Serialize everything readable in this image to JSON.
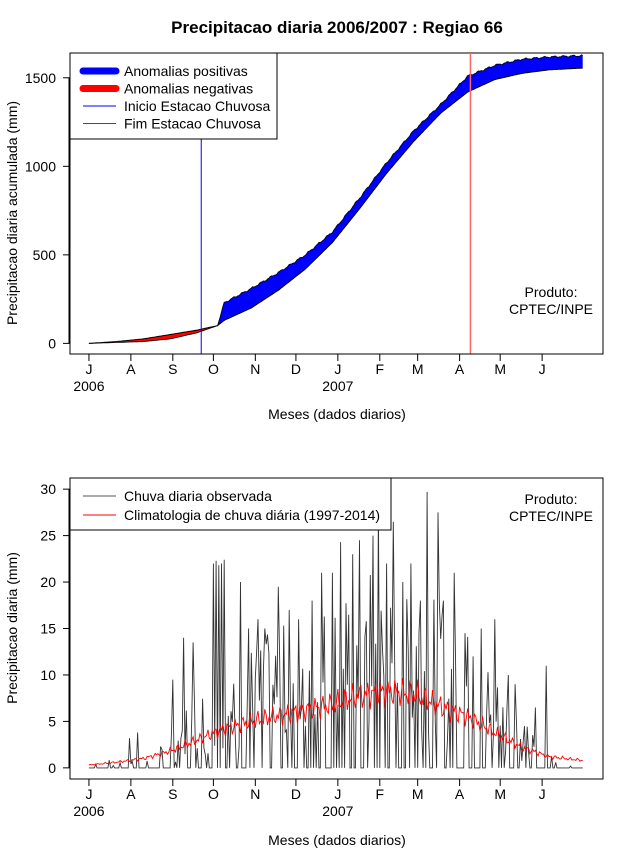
{
  "title": "Precipitacao diaria 2006/2007 : Regiao 66",
  "chart_data": [
    {
      "type": "area",
      "name": "accumulated",
      "ylabel": "Precipitacao diaria acumulada (mm)",
      "xlabel": "Meses (dados diarios)",
      "ylim": [
        -60,
        1640
      ],
      "yticks": [
        0,
        500,
        1000,
        1500
      ],
      "x_unit": "days since 2006-07-01",
      "month_ticks": [
        {
          "label": "J",
          "day": 0
        },
        {
          "label": "A",
          "day": 31
        },
        {
          "label": "S",
          "day": 62
        },
        {
          "label": "O",
          "day": 92
        },
        {
          "label": "N",
          "day": 123
        },
        {
          "label": "D",
          "day": 153
        },
        {
          "label": "J",
          "day": 184
        },
        {
          "label": "F",
          "day": 215
        },
        {
          "label": "M",
          "day": 243
        },
        {
          "label": "A",
          "day": 274
        },
        {
          "label": "M",
          "day": 304
        },
        {
          "label": "J",
          "day": 335
        }
      ],
      "year_labels": [
        {
          "label": "2006",
          "day": 0
        },
        {
          "label": "2007",
          "day": 184
        }
      ],
      "xlim": [
        -14,
        380
      ],
      "observed_accum": {
        "x": [
          0,
          20,
          40,
          60,
          80,
          95,
          100,
          120,
          140,
          160,
          180,
          200,
          220,
          240,
          260,
          280,
          300,
          320,
          340,
          365
        ],
        "y": [
          0,
          5,
          10,
          25,
          60,
          100,
          230,
          310,
          400,
          500,
          630,
          820,
          1020,
          1200,
          1350,
          1510,
          1570,
          1605,
          1618,
          1625
        ]
      },
      "climatology_accum": {
        "x": [
          0,
          20,
          40,
          60,
          80,
          95,
          100,
          120,
          140,
          160,
          180,
          200,
          220,
          240,
          260,
          280,
          300,
          320,
          340,
          365
        ],
        "y": [
          0,
          10,
          25,
          50,
          75,
          100,
          130,
          200,
          300,
          420,
          570,
          760,
          960,
          1140,
          1300,
          1420,
          1490,
          1525,
          1545,
          1555
        ]
      },
      "onset_day": 83,
      "end_day": 282,
      "legend": [
        {
          "label": "Anomalias positivas",
          "color": "#0000ff",
          "kind": "thick"
        },
        {
          "label": "Anomalias negativas",
          "color": "#ff0000",
          "kind": "thick"
        },
        {
          "label": "Inicio Estacao Chuvosa",
          "color": "#0000ff",
          "kind": "thin"
        },
        {
          "label": "Fim Estacao Chuvosa",
          "color": "#ff0000",
          "kind": "thin"
        }
      ],
      "annotation": [
        "Produto:",
        "CPTEC/INPE"
      ]
    },
    {
      "type": "line",
      "name": "daily",
      "ylabel": "Precipitacao diaria (mm)",
      "xlabel": "Meses (dados diarios)",
      "ylim": [
        -1.2,
        31.2
      ],
      "yticks": [
        0,
        5,
        10,
        15,
        20,
        25,
        30
      ],
      "month_ticks": [
        {
          "label": "J",
          "day": 0
        },
        {
          "label": "A",
          "day": 31
        },
        {
          "label": "S",
          "day": 62
        },
        {
          "label": "O",
          "day": 92
        },
        {
          "label": "N",
          "day": 123
        },
        {
          "label": "D",
          "day": 153
        },
        {
          "label": "J",
          "day": 184
        },
        {
          "label": "F",
          "day": 215
        },
        {
          "label": "M",
          "day": 243
        },
        {
          "label": "A",
          "day": 274
        },
        {
          "label": "M",
          "day": 304
        },
        {
          "label": "J",
          "day": 335
        }
      ],
      "year_labels": [
        {
          "label": "2006",
          "day": 0
        },
        {
          "label": "2007",
          "day": 184
        }
      ],
      "xlim": [
        -14,
        380
      ],
      "observed_daily_peaks": {
        "x": [
          30,
          36,
          62,
          70,
          77,
          92,
          94,
          96,
          98,
          100,
          112,
          118,
          125,
          130,
          140,
          148,
          155,
          165,
          172,
          180,
          186,
          195,
          200,
          210,
          214,
          220,
          225,
          232,
          238,
          245,
          250,
          258,
          262,
          270,
          278,
          284,
          290,
          300,
          310,
          315,
          330,
          338
        ],
        "y": [
          3.2,
          3.8,
          9.5,
          14,
          13.5,
          22,
          22.3,
          21.8,
          22,
          22.4,
          20,
          15,
          16,
          15,
          19.5,
          17,
          16,
          18,
          21,
          21,
          24.3,
          23,
          24.5,
          25,
          28,
          22,
          26.5,
          20,
          22,
          18,
          29.7,
          27.5,
          18,
          21,
          14.5,
          12,
          15,
          16,
          10,
          9,
          6.5,
          11
        ]
      },
      "climatology_daily": {
        "x": [
          0,
          20,
          40,
          60,
          80,
          100,
          120,
          140,
          160,
          180,
          200,
          220,
          240,
          260,
          280,
          300,
          320,
          340,
          365
        ],
        "y": [
          0.3,
          0.6,
          1,
          1.8,
          3,
          4.2,
          5,
          5.6,
          6.2,
          6.8,
          7.8,
          8.2,
          8,
          6.6,
          5.5,
          3.8,
          2.2,
          1.2,
          0.8
        ]
      },
      "legend": [
        {
          "label": "Chuva diaria observada",
          "color": "#555555",
          "kind": "thin"
        },
        {
          "label": "Climatologia de chuva diária (1997-2014)",
          "color": "#ff0000",
          "kind": "thin"
        }
      ],
      "annotation": [
        "Produto:",
        "CPTEC/INPE"
      ]
    }
  ]
}
